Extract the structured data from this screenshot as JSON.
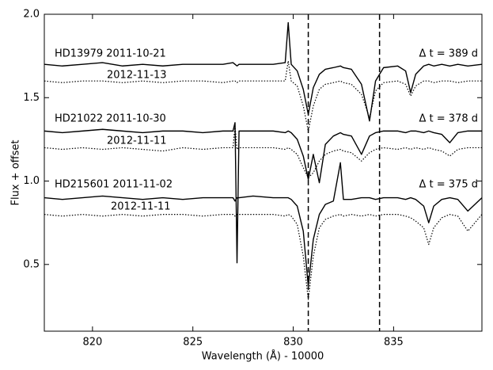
{
  "chart_data": {
    "type": "line",
    "xlabel": "Wavelength (Å) - 10000",
    "ylabel": "Flux + offset",
    "xlim": [
      817.6,
      839.4
    ],
    "ylim": [
      0.1,
      2.0
    ],
    "xticks": [
      820,
      825,
      830,
      835
    ],
    "yticks": [
      {
        "value": 0.5,
        "label": "0.5"
      },
      {
        "value": 1.0,
        "label": "1.0"
      },
      {
        "value": 1.5,
        "label": "1.5"
      },
      {
        "value": 2.0,
        "label": "2.0"
      }
    ],
    "grid": false,
    "vlines": [
      830.75,
      834.3
    ],
    "x": [
      817.6,
      818.5,
      819.5,
      820.5,
      821.5,
      822.5,
      823.5,
      824.5,
      825.5,
      826.5,
      827.0,
      827.1,
      827.2,
      827.3,
      828,
      829,
      829.6,
      829.75,
      829.9,
      830.2,
      830.5,
      830.75,
      831.0,
      831.3,
      831.6,
      832.0,
      832.35,
      832.5,
      832.9,
      833.4,
      833.8,
      834.1,
      834.5,
      835.2,
      835.6,
      835.85,
      836.1,
      836.5,
      836.75,
      837.0,
      837.4,
      837.8,
      838.2,
      838.7,
      839.4
    ],
    "series": [
      {
        "name": "HD13979 2011-10-21",
        "color": "#000000",
        "style": "solid",
        "values": [
          1.7,
          1.69,
          1.7,
          1.71,
          1.69,
          1.7,
          1.69,
          1.7,
          1.7,
          1.7,
          1.71,
          1.7,
          1.69,
          1.7,
          1.7,
          1.7,
          1.71,
          1.95,
          1.7,
          1.66,
          1.55,
          1.4,
          1.56,
          1.64,
          1.67,
          1.68,
          1.69,
          1.68,
          1.67,
          1.58,
          1.36,
          1.6,
          1.68,
          1.69,
          1.66,
          1.53,
          1.64,
          1.69,
          1.7,
          1.69,
          1.7,
          1.69,
          1.7,
          1.69,
          1.7
        ]
      },
      {
        "name": "2012-11-13",
        "color": "#000000",
        "style": "dotted",
        "values": [
          1.6,
          1.59,
          1.6,
          1.6,
          1.59,
          1.6,
          1.59,
          1.6,
          1.6,
          1.59,
          1.6,
          1.6,
          1.59,
          1.6,
          1.6,
          1.6,
          1.6,
          1.72,
          1.6,
          1.57,
          1.45,
          1.3,
          1.45,
          1.55,
          1.58,
          1.59,
          1.6,
          1.59,
          1.58,
          1.52,
          1.38,
          1.54,
          1.59,
          1.6,
          1.58,
          1.51,
          1.57,
          1.6,
          1.6,
          1.59,
          1.6,
          1.6,
          1.59,
          1.6,
          1.6
        ]
      },
      {
        "name": "HD21022 2011-10-30",
        "color": "#000000",
        "style": "solid",
        "values": [
          1.3,
          1.29,
          1.3,
          1.31,
          1.3,
          1.29,
          1.3,
          1.3,
          1.29,
          1.3,
          1.3,
          1.35,
          0.51,
          1.3,
          1.3,
          1.3,
          1.29,
          1.3,
          1.29,
          1.25,
          1.15,
          1.01,
          1.16,
          0.99,
          1.22,
          1.27,
          1.29,
          1.28,
          1.27,
          1.16,
          1.27,
          1.29,
          1.3,
          1.3,
          1.29,
          1.3,
          1.3,
          1.29,
          1.3,
          1.29,
          1.28,
          1.23,
          1.29,
          1.3,
          1.3
        ]
      },
      {
        "name": "2012-11-11",
        "color": "#000000",
        "style": "dotted",
        "values": [
          1.2,
          1.19,
          1.2,
          1.19,
          1.2,
          1.19,
          1.18,
          1.2,
          1.19,
          1.2,
          1.2,
          1.33,
          1.19,
          1.2,
          1.2,
          1.2,
          1.19,
          1.2,
          1.19,
          1.16,
          1.08,
          1.02,
          1.05,
          1.12,
          1.16,
          1.18,
          1.19,
          1.18,
          1.17,
          1.12,
          1.17,
          1.19,
          1.2,
          1.19,
          1.2,
          1.19,
          1.2,
          1.19,
          1.2,
          1.19,
          1.18,
          1.15,
          1.19,
          1.2,
          1.2
        ]
      },
      {
        "name": "HD215601 2011-11-02",
        "color": "#000000",
        "style": "solid",
        "values": [
          0.9,
          0.89,
          0.9,
          0.91,
          0.9,
          0.89,
          0.9,
          0.89,
          0.9,
          0.9,
          0.9,
          0.88,
          0.9,
          0.9,
          0.91,
          0.9,
          0.9,
          0.9,
          0.89,
          0.85,
          0.7,
          0.37,
          0.65,
          0.8,
          0.86,
          0.88,
          1.11,
          0.89,
          0.89,
          0.9,
          0.9,
          0.89,
          0.9,
          0.9,
          0.89,
          0.9,
          0.89,
          0.85,
          0.75,
          0.85,
          0.89,
          0.9,
          0.89,
          0.82,
          0.9
        ]
      },
      {
        "name": "2012-11-11",
        "color": "#000000",
        "style": "dotted",
        "values": [
          0.8,
          0.79,
          0.8,
          0.79,
          0.8,
          0.79,
          0.8,
          0.8,
          0.79,
          0.8,
          0.8,
          0.79,
          0.8,
          0.8,
          0.8,
          0.8,
          0.79,
          0.8,
          0.79,
          0.74,
          0.55,
          0.29,
          0.55,
          0.72,
          0.77,
          0.79,
          0.8,
          0.79,
          0.8,
          0.79,
          0.8,
          0.79,
          0.8,
          0.8,
          0.79,
          0.78,
          0.76,
          0.72,
          0.62,
          0.72,
          0.78,
          0.8,
          0.79,
          0.7,
          0.8
        ]
      }
    ],
    "annotations": [
      "Δ t = 389 d",
      "Δ t = 378 d",
      "Δ t = 375 d"
    ]
  }
}
